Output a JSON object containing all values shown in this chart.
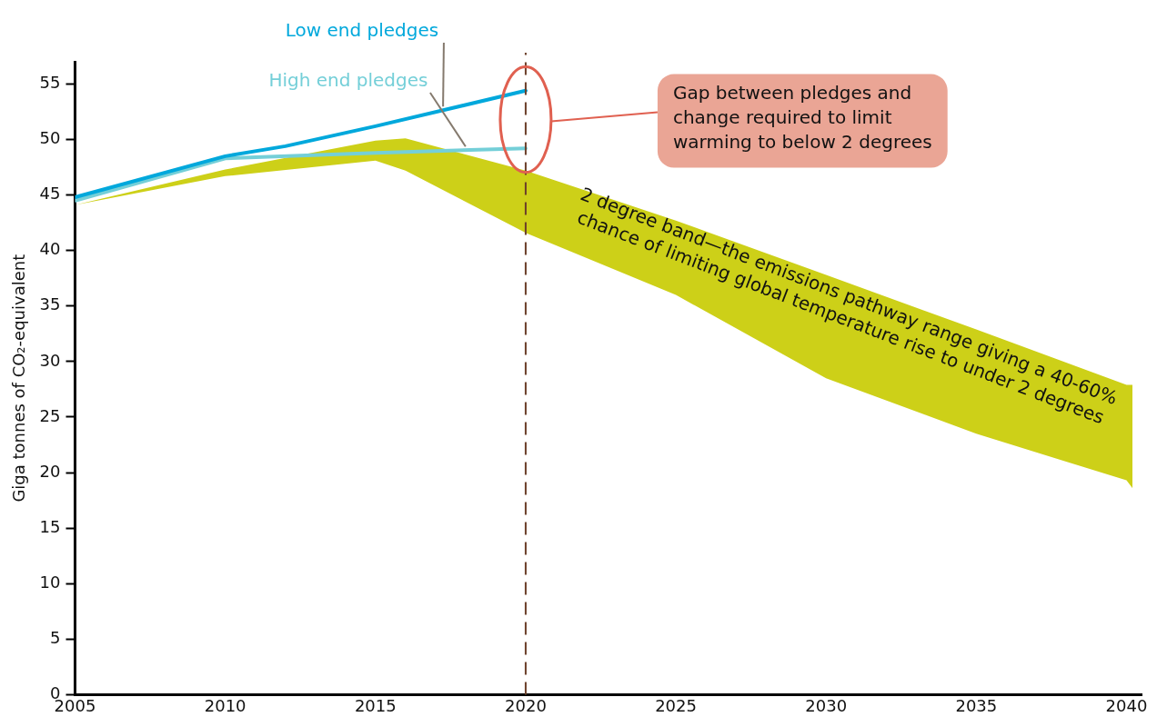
{
  "chart_data": {
    "type": "line",
    "ylabel": "Giga tonnes of CO₂-equivalent",
    "xlim": [
      2005,
      2040.5
    ],
    "ylim": [
      0,
      57
    ],
    "xticks": [
      2005,
      2010,
      2015,
      2020,
      2025,
      2030,
      2035,
      2040
    ],
    "yticks": [
      0,
      5,
      10,
      15,
      20,
      25,
      30,
      35,
      40,
      45,
      50,
      55
    ],
    "grid": false,
    "legend": false,
    "marker": "none",
    "line_style": "solid",
    "series": [
      {
        "type": "area",
        "color": "#cdd018",
        "x": [
          2005,
          2010,
          2015,
          2016,
          2020,
          2025,
          2030,
          2035,
          2040,
          2040.2
        ],
        "values": [
          null,
          null,
          null,
          null,
          null,
          null,
          null,
          null,
          null,
          null
        ],
        "upper": [
          44.1,
          47.3,
          49.9,
          50.1,
          47.2,
          42.7,
          37.8,
          32.9,
          27.9,
          27.9
        ],
        "lower": [
          44.1,
          46.7,
          48.1,
          47.2,
          41.6,
          36.0,
          28.5,
          23.5,
          19.3,
          18.6
        ]
      },
      {
        "name": "Low end pledges",
        "color": "#00a8dc",
        "x": [
          2005,
          2010,
          2012,
          2015,
          2020
        ],
        "values": [
          44.8,
          48.5,
          49.4,
          51.2,
          54.4
        ]
      },
      {
        "name": "High end pledges",
        "color": "#74cfd8",
        "x": [
          2005,
          2010,
          2015,
          2020
        ],
        "values": [
          44.5,
          48.3,
          48.8,
          49.2
        ]
      }
    ],
    "ref_lines": [
      {
        "axis": "x",
        "value": 2020,
        "color": "#6b3f2a",
        "line_style": "dashed"
      }
    ],
    "annotations": [
      "Gap between pledges and\nchange required to limit\nwarming to below 2 degrees",
      "2 degree band—the emissions pathway range giving a 40-60%\nchance of limiting global temperature rise to under 2 degrees"
    ]
  }
}
